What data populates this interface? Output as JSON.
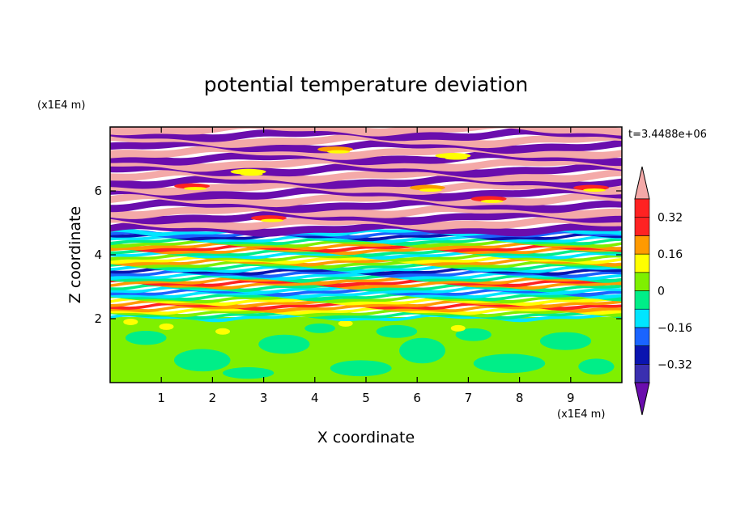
{
  "chart_data": {
    "type": "heatmap",
    "title": "potential temperature deviation",
    "xlabel": "X coordinate",
    "ylabel": "Z coordinate",
    "x_unit": "(x1E4 m)",
    "y_unit": "(x1E4 m)",
    "time_label": "t=3.4488e+06",
    "xlim": [
      0,
      10
    ],
    "ylim": [
      0,
      8
    ],
    "x_ticks": [
      1,
      2,
      3,
      4,
      5,
      6,
      7,
      8,
      9
    ],
    "y_ticks": [
      2,
      4,
      6
    ],
    "colorbar": {
      "levels": [
        -0.4,
        -0.32,
        -0.24,
        -0.16,
        -0.08,
        0,
        0.08,
        0.16,
        0.24,
        0.32,
        0.4
      ],
      "tick_values": [
        0.32,
        0.16,
        0,
        -0.16,
        -0.32
      ],
      "tick_labels": [
        "0.32",
        "0.16",
        "0",
        "−0.16",
        "−0.32"
      ],
      "colors": [
        "#6a0dad",
        "#3a2fb0",
        "#0a14b0",
        "#1a64ff",
        "#00e5ff",
        "#00ee88",
        "#7ff000",
        "#ffff00",
        "#ff9a00",
        "#ff2222",
        "#f4a9a8"
      ],
      "extend": "both"
    },
    "layers": [
      {
        "z_range": [
          0,
          2.0
        ],
        "pattern": "mixed green",
        "range_of_values": [
          -0.08,
          0.08
        ]
      },
      {
        "z_range": [
          2.0,
          4.7
        ],
        "pattern": "thin wavy bands",
        "range_of_values": [
          -0.3,
          0.3
        ]
      },
      {
        "z_range": [
          4.7,
          8.0
        ],
        "pattern": "alternating pink/purple bands",
        "range_of_values": [
          -0.4,
          0.4
        ]
      }
    ]
  }
}
